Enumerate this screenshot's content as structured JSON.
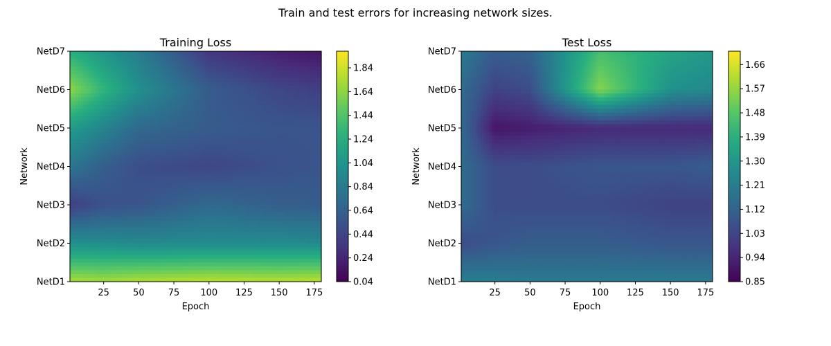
{
  "figure": {
    "suptitle": "Train and test errors for increasing network sizes."
  },
  "colormap": {
    "name": "viridis",
    "stops": [
      "#440154",
      "#472d7b",
      "#3b528b",
      "#2c728e",
      "#21918c",
      "#28ae80",
      "#5ec962",
      "#addc30",
      "#fde725"
    ]
  },
  "chart_data": [
    {
      "type": "heatmap",
      "title": "Training Loss",
      "xlabel": "Epoch",
      "ylabel": "Network",
      "xlim": [
        1,
        180
      ],
      "x_ticks": [
        25,
        50,
        75,
        100,
        125,
        150,
        175
      ],
      "y_categories": [
        "NetD1",
        "NetD2",
        "NetD3",
        "NetD4",
        "NetD5",
        "NetD6",
        "NetD7"
      ],
      "colorbar": {
        "vmin": 0.04,
        "vmax": 1.98,
        "ticks": [
          "0.04",
          "0.24",
          "0.44",
          "0.64",
          "0.84",
          "1.04",
          "1.24",
          "1.44",
          "1.64",
          "1.84"
        ]
      },
      "approx_rows": [
        {
          "network": "NetD1",
          "epochs": [
            1,
            25,
            50,
            100,
            150,
            180
          ],
          "values": [
            1.72,
            1.7,
            1.74,
            1.78,
            1.76,
            1.78
          ]
        },
        {
          "network": "NetD2",
          "epochs": [
            1,
            25,
            50,
            100,
            150,
            180
          ],
          "values": [
            1.0,
            0.98,
            0.95,
            0.96,
            0.96,
            0.95
          ]
        },
        {
          "network": "NetD3",
          "epochs": [
            1,
            25,
            50,
            100,
            150,
            180
          ],
          "values": [
            0.4,
            0.52,
            0.55,
            0.7,
            0.62,
            0.6
          ]
        },
        {
          "network": "NetD4",
          "epochs": [
            1,
            25,
            50,
            100,
            150,
            180
          ],
          "values": [
            0.8,
            0.62,
            0.5,
            0.45,
            0.52,
            0.55
          ]
        },
        {
          "network": "NetD5",
          "epochs": [
            1,
            25,
            50,
            100,
            150,
            180
          ],
          "values": [
            1.1,
            0.9,
            0.7,
            0.6,
            0.55,
            0.55
          ]
        },
        {
          "network": "NetD6",
          "epochs": [
            1,
            25,
            50,
            100,
            150,
            180
          ],
          "values": [
            1.65,
            1.3,
            1.0,
            0.6,
            0.45,
            0.4
          ]
        },
        {
          "network": "NetD7",
          "epochs": [
            1,
            25,
            50,
            100,
            150,
            180
          ],
          "values": [
            1.25,
            1.05,
            0.85,
            0.35,
            0.2,
            0.15
          ]
        }
      ]
    },
    {
      "type": "heatmap",
      "title": "Test Loss",
      "xlabel": "Epoch",
      "ylabel": "Network",
      "xlim": [
        1,
        180
      ],
      "x_ticks": [
        25,
        50,
        75,
        100,
        125,
        150,
        175
      ],
      "y_categories": [
        "NetD1",
        "NetD2",
        "NetD3",
        "NetD4",
        "NetD5",
        "NetD6",
        "NetD7"
      ],
      "colorbar": {
        "vmin": 0.85,
        "vmax": 1.71,
        "ticks": [
          "0.85",
          "0.94",
          "1.03",
          "1.12",
          "1.21",
          "1.30",
          "1.39",
          "1.48",
          "1.57",
          "1.66"
        ]
      },
      "approx_rows": [
        {
          "network": "NetD1",
          "epochs": [
            1,
            25,
            50,
            100,
            150,
            180
          ],
          "values": [
            1.22,
            1.21,
            1.2,
            1.2,
            1.2,
            1.2
          ]
        },
        {
          "network": "NetD2",
          "epochs": [
            1,
            25,
            50,
            100,
            150,
            180
          ],
          "values": [
            1.05,
            1.08,
            1.1,
            1.1,
            1.08,
            1.08
          ]
        },
        {
          "network": "NetD3",
          "epochs": [
            1,
            25,
            50,
            100,
            150,
            180
          ],
          "values": [
            1.15,
            1.05,
            1.05,
            1.05,
            1.02,
            1.02
          ]
        },
        {
          "network": "NetD4",
          "epochs": [
            1,
            25,
            50,
            100,
            150,
            180
          ],
          "values": [
            1.15,
            1.05,
            1.05,
            1.08,
            1.08,
            1.1
          ]
        },
        {
          "network": "NetD5",
          "epochs": [
            1,
            25,
            50,
            100,
            150,
            180
          ],
          "values": [
            1.15,
            0.9,
            0.92,
            0.95,
            0.95,
            0.95
          ]
        },
        {
          "network": "NetD6",
          "epochs": [
            1,
            25,
            50,
            100,
            150,
            180
          ],
          "values": [
            1.15,
            1.02,
            1.05,
            1.55,
            1.28,
            1.25
          ]
        },
        {
          "network": "NetD7",
          "epochs": [
            1,
            25,
            50,
            100,
            150,
            180
          ],
          "values": [
            1.2,
            1.1,
            1.12,
            1.45,
            1.35,
            1.3
          ]
        }
      ]
    }
  ]
}
